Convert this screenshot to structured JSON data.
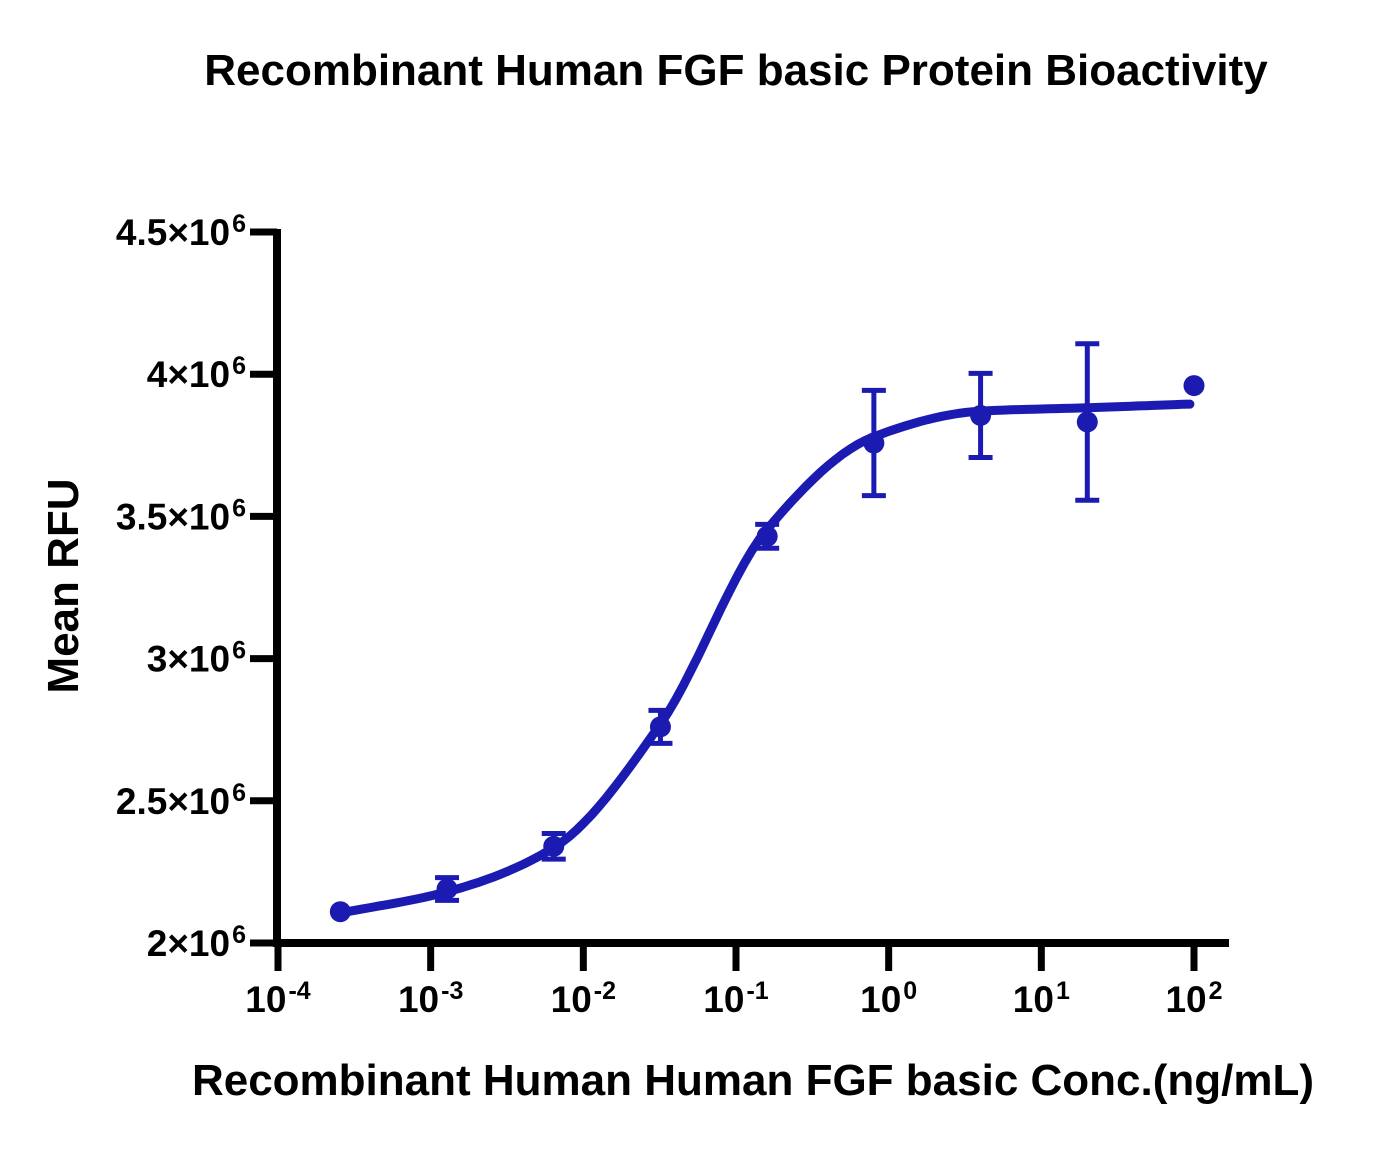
{
  "chart_data": {
    "type": "scatter",
    "title": "Recombinant Human FGF basic Protein Bioactivity",
    "xlabel": "Recombinant Human Human FGF basic Conc.(ng/mL)",
    "ylabel": "Mean RFU",
    "x_scale": "log10",
    "xlim_exponents": [
      -4,
      2
    ],
    "ylim": [
      2000000,
      4500000
    ],
    "grid": false,
    "legend": "none",
    "accent_color": "#1b1bb2",
    "axis_color": "#000000",
    "x_ticks": [
      {
        "text": "10",
        "sup": "-4",
        "value": 0.0001
      },
      {
        "text": "10",
        "sup": "-3",
        "value": 0.001
      },
      {
        "text": "10",
        "sup": "-2",
        "value": 0.01
      },
      {
        "text": "10",
        "sup": "-1",
        "value": 0.1
      },
      {
        "text": "10",
        "sup": "0",
        "value": 1
      },
      {
        "text": "10",
        "sup": "1",
        "value": 10
      },
      {
        "text": "10",
        "sup": "2",
        "value": 100
      }
    ],
    "y_ticks": [
      {
        "text": "2×10",
        "sup": "6",
        "value": 2000000
      },
      {
        "text": "2.5×10",
        "sup": "6",
        "value": 2500000
      },
      {
        "text": "3×10",
        "sup": "6",
        "value": 3000000
      },
      {
        "text": "3.5×10",
        "sup": "6",
        "value": 3500000
      },
      {
        "text": "4×10",
        "sup": "6",
        "value": 4000000
      },
      {
        "text": "4.5×10",
        "sup": "6",
        "value": 4500000
      }
    ],
    "series": [
      {
        "points": [
          {
            "x": 0.000256,
            "y": 2110000,
            "sd": 0
          },
          {
            "x": 0.00128,
            "y": 2190000,
            "sd": 40000
          },
          {
            "x": 0.0064,
            "y": 2340000,
            "sd": 45000
          },
          {
            "x": 0.032,
            "y": 2760000,
            "sd": 58000
          },
          {
            "x": 0.16,
            "y": 3430000,
            "sd": 42000
          },
          {
            "x": 0.8,
            "y": 3758000,
            "sd": 185000
          },
          {
            "x": 4,
            "y": 3855000,
            "sd": 148000
          },
          {
            "x": 20,
            "y": 3832000,
            "sd": 275000
          },
          {
            "x": 100,
            "y": 3960000,
            "sd": 0
          }
        ]
      }
    ],
    "fit_curve": {
      "model": "sigmoidal dose-response",
      "samples": [
        [
          0.000256,
          2105000
        ],
        [
          0.00128,
          2180000
        ],
        [
          0.0064,
          2335000
        ],
        [
          0.032,
          2770000
        ],
        [
          0.16,
          3455000
        ],
        [
          0.8,
          3780000
        ],
        [
          4,
          3870000
        ],
        [
          20,
          3882000
        ],
        [
          94,
          3895000
        ]
      ]
    }
  }
}
